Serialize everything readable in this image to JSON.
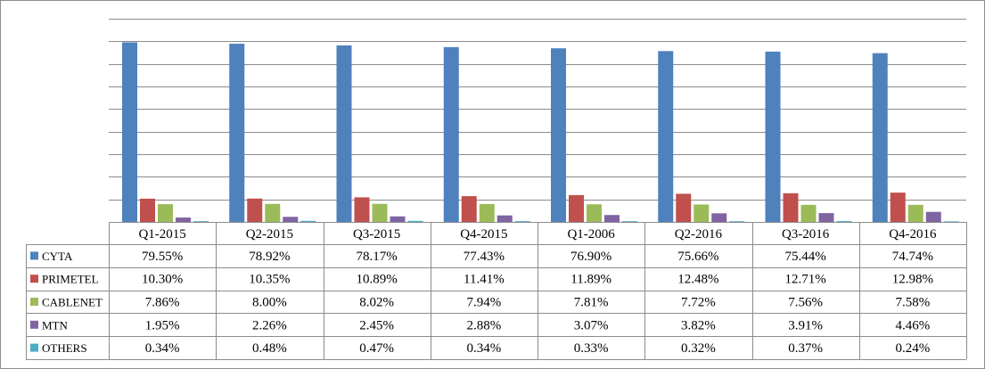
{
  "chart_data": {
    "type": "bar",
    "title": "",
    "xlabel": "",
    "ylabel": "",
    "ylim": [
      0,
      90
    ],
    "grid": true,
    "legend": "data-table",
    "categories": [
      "Q1-2015",
      "Q2-2015",
      "Q3-2015",
      "Q4-2015",
      "Q1-2006",
      "Q2-2016",
      "Q3-2016",
      "Q4-2016"
    ],
    "series": [
      {
        "name": "CYTA",
        "color": "#4f81bd",
        "values": [
          79.55,
          78.92,
          78.17,
          77.43,
          76.9,
          75.66,
          75.44,
          74.74
        ],
        "labels": [
          "79.55%",
          "78.92%",
          "78.17%",
          "77.43%",
          "76.90%",
          "75.66%",
          "75.44%",
          "74.74%"
        ]
      },
      {
        "name": "PRIMETEL",
        "color": "#c0504d",
        "values": [
          10.3,
          10.35,
          10.89,
          11.41,
          11.89,
          12.48,
          12.71,
          12.98
        ],
        "labels": [
          "10.30%",
          "10.35%",
          "10.89%",
          "11.41%",
          "11.89%",
          "12.48%",
          "12.71%",
          "12.98%"
        ]
      },
      {
        "name": "CABLENET",
        "color": "#9bbb59",
        "values": [
          7.86,
          8.0,
          8.02,
          7.94,
          7.81,
          7.72,
          7.56,
          7.58
        ],
        "labels": [
          "7.86%",
          "8.00%",
          "8.02%",
          "7.94%",
          "7.81%",
          "7.72%",
          "7.56%",
          "7.58%"
        ]
      },
      {
        "name": "MTN",
        "color": "#8064a2",
        "values": [
          1.95,
          2.26,
          2.45,
          2.88,
          3.07,
          3.82,
          3.91,
          4.46
        ],
        "labels": [
          "1.95%",
          "2.26%",
          "2.45%",
          "2.88%",
          "3.07%",
          "3.82%",
          "3.91%",
          "4.46%"
        ]
      },
      {
        "name": "OTHERS",
        "color": "#4bacc6",
        "values": [
          0.34,
          0.48,
          0.47,
          0.34,
          0.33,
          0.32,
          0.37,
          0.24
        ],
        "labels": [
          "0.34%",
          "0.48%",
          "0.47%",
          "0.34%",
          "0.33%",
          "0.32%",
          "0.37%",
          "0.24%"
        ]
      }
    ]
  }
}
